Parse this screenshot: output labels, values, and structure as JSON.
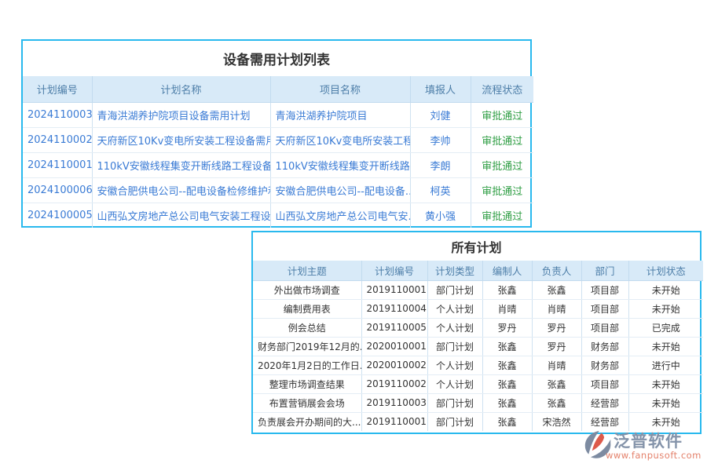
{
  "colors": {
    "accent": "#29b9ee",
    "header_bg": "#d8eaf8",
    "header_text": "#4d7ea8",
    "link_blue": "#3a7bd5",
    "status_green": "#2f9e44",
    "cell_dark": "#333333",
    "logo_gray": "#7d8ba1",
    "logo_red": "#dd5a4a",
    "logo_url_color": "#e4826c"
  },
  "equipment_table": {
    "title": "设备需用计划列表",
    "columns": [
      "计划编号",
      "计划名称",
      "项目名称",
      "填报人",
      "流程状态"
    ],
    "rows": [
      [
        "2024110003",
        "青海洪湖养护院项目设备需用计划",
        "青海洪湖养护院项目",
        "刘健",
        "审批通过"
      ],
      [
        "2024110002",
        "天府新区10Kv变电所安装工程设备需用...",
        "天府新区10Kv变电所安装工程",
        "李帅",
        "审批通过"
      ],
      [
        "2024110001",
        "110kV安徽线程集变开断线路工程设备需...",
        "110kV安徽线程集变开断线路...",
        "李朗",
        "审批通过"
      ],
      [
        "2024100006",
        "安徽合肥供电公司--配电设备检修维护和...",
        "安徽合肥供电公司--配电设备...",
        "柯英",
        "审批通过"
      ],
      [
        "2024100005",
        "山西弘文房地产总公司电气安装工程设备...",
        "山西弘文房地产总公司电气安...",
        "黄小强",
        "审批通过"
      ]
    ]
  },
  "all_plans_table": {
    "title": "所有计划",
    "columns": [
      "计划主题",
      "计划编号",
      "计划类型",
      "编制人",
      "负责人",
      "部门",
      "计划状态"
    ],
    "rows": [
      [
        "外出做市场调查",
        "2019110001",
        "部门计划",
        "张鑫",
        "张鑫",
        "项目部",
        "未开始"
      ],
      [
        "编制费用表",
        "2019110004",
        "个人计划",
        "肖晴",
        "肖晴",
        "项目部",
        "未开始"
      ],
      [
        "例会总结",
        "2019110005",
        "个人计划",
        "罗丹",
        "罗丹",
        "项目部",
        "已完成"
      ],
      [
        "财务部门2019年12月的...",
        "2020010001",
        "部门计划",
        "张鑫",
        "罗丹",
        "财务部",
        "未开始"
      ],
      [
        "2020年1月2日的工作日...",
        "2020010002",
        "个人计划",
        "张鑫",
        "肖晴",
        "财务部",
        "进行中"
      ],
      [
        "整理市场调查结果",
        "2019110002",
        "个人计划",
        "张鑫",
        "张鑫",
        "项目部",
        "未开始"
      ],
      [
        "布置营销展会会场",
        "2019110003",
        "部门计划",
        "张鑫",
        "张鑫",
        "经营部",
        "未开始"
      ],
      [
        "负责展会开办期间的大...",
        "2019110001",
        "部门计划",
        "张鑫",
        "宋浩然",
        "经营部",
        "未开始"
      ]
    ]
  },
  "logo": {
    "brand": "泛普软件",
    "url": "www.fanpusoft.com"
  }
}
